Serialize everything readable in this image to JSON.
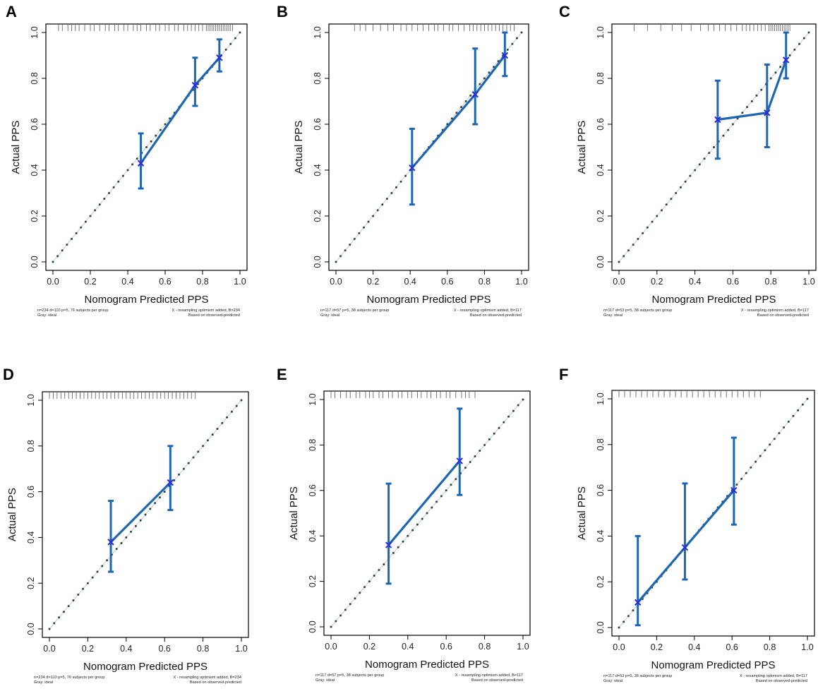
{
  "figure": {
    "description_panels": [
      "A",
      "B",
      "C",
      "D",
      "E",
      "F"
    ]
  },
  "chart_data": [
    {
      "panel": "A",
      "type": "line",
      "xlabel": "Nomogram Predicted PPS",
      "ylabel": "Actual PPS",
      "xlim": [
        0.0,
        1.0
      ],
      "ylim": [
        0.0,
        1.0
      ],
      "xticks": [
        "0.0",
        "0.2",
        "0.4",
        "0.6",
        "0.8",
        "1.0"
      ],
      "yticks": [
        "0.0",
        "0.2",
        "0.4",
        "0.6",
        "0.8",
        "1.0"
      ],
      "ideal_line": {
        "name": "ideal",
        "x": [
          0,
          1
        ],
        "y": [
          0,
          1
        ]
      },
      "groups": [
        {
          "x": 0.47,
          "y": 0.43,
          "lower": 0.32,
          "upper": 0.56
        },
        {
          "x": 0.76,
          "y": 0.77,
          "lower": 0.68,
          "upper": 0.89
        },
        {
          "x": 0.89,
          "y": 0.89,
          "lower": 0.83,
          "upper": 0.97
        }
      ],
      "rug": [
        0.03,
        0.05,
        0.08,
        0.1,
        0.12,
        0.14,
        0.17,
        0.2,
        0.22,
        0.25,
        0.28,
        0.3,
        0.33,
        0.35,
        0.38,
        0.4,
        0.43,
        0.45,
        0.47,
        0.5,
        0.52,
        0.55,
        0.57,
        0.6,
        0.62,
        0.65,
        0.67,
        0.7,
        0.72,
        0.74,
        0.76,
        0.78,
        0.8,
        0.82,
        0.83,
        0.84,
        0.85,
        0.86,
        0.87,
        0.88,
        0.89,
        0.9,
        0.91,
        0.92,
        0.93,
        0.94,
        0.95,
        0.96
      ],
      "footnote_left_1": "n=234 d=110 p=5, 76 subjects per group",
      "footnote_left_2": "Gray: ideal",
      "footnote_right_1": "X - resampling optimism added, B=234",
      "footnote_right_2": "Based on observed-predicted"
    },
    {
      "panel": "B",
      "type": "line",
      "xlabel": "Nomogram Predicted PPS",
      "ylabel": "Actual PPS",
      "xlim": [
        0.0,
        1.0
      ],
      "ylim": [
        0.0,
        1.0
      ],
      "xticks": [
        "0.0",
        "0.2",
        "0.4",
        "0.6",
        "0.8",
        "1.0"
      ],
      "yticks": [
        "0.0",
        "0.2",
        "0.4",
        "0.6",
        "0.8",
        "1.0"
      ],
      "ideal_line": {
        "name": "ideal",
        "x": [
          0,
          1
        ],
        "y": [
          0,
          1
        ]
      },
      "groups": [
        {
          "x": 0.41,
          "y": 0.41,
          "lower": 0.25,
          "upper": 0.58
        },
        {
          "x": 0.75,
          "y": 0.73,
          "lower": 0.6,
          "upper": 0.93
        },
        {
          "x": 0.91,
          "y": 0.9,
          "lower": 0.81,
          "upper": 1.0
        }
      ],
      "rug": [
        0.1,
        0.13,
        0.16,
        0.2,
        0.24,
        0.28,
        0.31,
        0.35,
        0.38,
        0.41,
        0.44,
        0.47,
        0.5,
        0.53,
        0.55,
        0.58,
        0.61,
        0.63,
        0.66,
        0.69,
        0.72,
        0.74,
        0.76,
        0.78,
        0.8,
        0.82,
        0.84,
        0.86,
        0.88,
        0.9,
        0.92,
        0.94,
        0.96
      ],
      "footnote_left_1": "n=117 d=57 p=5, 38 subjects per group",
      "footnote_left_2": "Gray: ideal",
      "footnote_right_1": "X - resampling optimism added, B=117",
      "footnote_right_2": "Based on observed-predicted"
    },
    {
      "panel": "C",
      "type": "line",
      "xlabel": "Nomogram Predicted PPS",
      "ylabel": "Actual PPS",
      "xlim": [
        0.0,
        1.0
      ],
      "ylim": [
        0.0,
        1.0
      ],
      "xticks": [
        "0.0",
        "0.2",
        "0.4",
        "0.6",
        "0.8",
        "1.0"
      ],
      "yticks": [
        "0.0",
        "0.2",
        "0.4",
        "0.6",
        "0.8",
        "1.0"
      ],
      "ideal_line": {
        "name": "ideal",
        "x": [
          0,
          1
        ],
        "y": [
          0,
          1
        ]
      },
      "groups": [
        {
          "x": 0.52,
          "y": 0.62,
          "lower": 0.45,
          "upper": 0.79
        },
        {
          "x": 0.78,
          "y": 0.65,
          "lower": 0.5,
          "upper": 0.86
        },
        {
          "x": 0.88,
          "y": 0.88,
          "lower": 0.8,
          "upper": 1.0
        }
      ],
      "rug": [
        0.08,
        0.15,
        0.22,
        0.28,
        0.33,
        0.38,
        0.43,
        0.47,
        0.5,
        0.53,
        0.56,
        0.59,
        0.62,
        0.65,
        0.67,
        0.69,
        0.71,
        0.73,
        0.75,
        0.77,
        0.79,
        0.8,
        0.81,
        0.82,
        0.83,
        0.84,
        0.85,
        0.86,
        0.87,
        0.88,
        0.89,
        0.9
      ],
      "footnote_left_1": "n=117 d=53 p=5, 38 subjects per group",
      "footnote_left_2": "Gray: ideal",
      "footnote_right_1": "X - resampling optimism added, B=117",
      "footnote_right_2": "Based on observed-predicted"
    },
    {
      "panel": "D",
      "type": "line",
      "xlabel": "Nomogram Predicted PPS",
      "ylabel": "Actual PPS",
      "xlim": [
        0.0,
        1.0
      ],
      "ylim": [
        0.0,
        1.0
      ],
      "xticks": [
        "0.0",
        "0.2",
        "0.4",
        "0.6",
        "0.8",
        "1.0"
      ],
      "yticks": [
        "0.0",
        "0.2",
        "0.4",
        "0.6",
        "0.8",
        "1.0"
      ],
      "ideal_line": {
        "name": "ideal",
        "x": [
          0,
          1
        ],
        "y": [
          0,
          1
        ]
      },
      "groups": [
        {
          "x": 0.32,
          "y": 0.38,
          "lower": 0.25,
          "upper": 0.56
        },
        {
          "x": 0.63,
          "y": 0.64,
          "lower": 0.52,
          "upper": 0.8
        }
      ],
      "rug": [
        0.0,
        0.02,
        0.04,
        0.06,
        0.08,
        0.1,
        0.12,
        0.14,
        0.16,
        0.18,
        0.2,
        0.22,
        0.24,
        0.26,
        0.28,
        0.3,
        0.32,
        0.34,
        0.36,
        0.38,
        0.4,
        0.42,
        0.44,
        0.46,
        0.48,
        0.5,
        0.52,
        0.54,
        0.56,
        0.58,
        0.6,
        0.62,
        0.64,
        0.66,
        0.68,
        0.7,
        0.72,
        0.74,
        0.76
      ],
      "footnote_left_1": "n=234 d=110 p=5, 76 subjects per group",
      "footnote_left_2": "Gray: ideal",
      "footnote_right_1": "X - resampling optimism added, B=234",
      "footnote_right_2": "Based on observed-predicted"
    },
    {
      "panel": "E",
      "type": "line",
      "xlabel": "Nomogram Predicted PPS",
      "ylabel": "Actual PPS",
      "xlim": [
        0.0,
        1.0
      ],
      "ylim": [
        0.0,
        1.0
      ],
      "xticks": [
        "0.0",
        "0.2",
        "0.4",
        "0.6",
        "0.8",
        "1.0"
      ],
      "yticks": [
        "0.0",
        "0.2",
        "0.4",
        "0.6",
        "0.8",
        "1.0"
      ],
      "ideal_line": {
        "name": "ideal",
        "x": [
          0,
          1
        ],
        "y": [
          0,
          1
        ]
      },
      "groups": [
        {
          "x": 0.3,
          "y": 0.36,
          "lower": 0.19,
          "upper": 0.63
        },
        {
          "x": 0.67,
          "y": 0.73,
          "lower": 0.58,
          "upper": 0.96
        }
      ],
      "rug": [
        0.0,
        0.02,
        0.05,
        0.08,
        0.1,
        0.13,
        0.15,
        0.18,
        0.2,
        0.22,
        0.25,
        0.27,
        0.3,
        0.32,
        0.35,
        0.37,
        0.4,
        0.42,
        0.45,
        0.47,
        0.5,
        0.52,
        0.55,
        0.57,
        0.6,
        0.62,
        0.65,
        0.68,
        0.7,
        0.72,
        0.75
      ],
      "footnote_left_1": "n=117 d=57 p=5, 38 subjects per group",
      "footnote_left_2": "Gray: ideal",
      "footnote_right_1": "X - resampling optimism added, B=117",
      "footnote_right_2": "Based on observed-predicted"
    },
    {
      "panel": "F",
      "type": "line",
      "xlabel": "Nomogram Predicted PPS",
      "ylabel": "Actual PPS",
      "xlim": [
        0.0,
        1.0
      ],
      "ylim": [
        0.0,
        1.0
      ],
      "xticks": [
        "0.0",
        "0.2",
        "0.4",
        "0.6",
        "0.8",
        "1.0"
      ],
      "yticks": [
        "0.0",
        "0.2",
        "0.4",
        "0.6",
        "0.8",
        "1.0"
      ],
      "ideal_line": {
        "name": "ideal",
        "x": [
          0,
          1
        ],
        "y": [
          0,
          1
        ]
      },
      "groups": [
        {
          "x": 0.1,
          "y": 0.11,
          "lower": 0.01,
          "upper": 0.4
        },
        {
          "x": 0.35,
          "y": 0.35,
          "lower": 0.21,
          "upper": 0.63
        },
        {
          "x": 0.61,
          "y": 0.6,
          "lower": 0.45,
          "upper": 0.83
        }
      ],
      "rug": [
        0.0,
        0.03,
        0.06,
        0.09,
        0.12,
        0.15,
        0.18,
        0.21,
        0.24,
        0.27,
        0.3,
        0.33,
        0.36,
        0.39,
        0.42,
        0.45,
        0.48,
        0.51,
        0.54,
        0.57,
        0.6,
        0.63,
        0.66,
        0.69,
        0.72,
        0.75
      ],
      "footnote_left_1": "n=117 d=53 p=5, 38 subjects per group",
      "footnote_left_2": "Gray: ideal",
      "footnote_right_1": "X - resampling optimism added, B=117",
      "footnote_right_2": "Based on observed-predicted"
    }
  ],
  "colors": {
    "calibration_line": "#1f66b0",
    "cross_marker": "#2b2bd9",
    "ideal_dots": "#1f4a3c",
    "ideal_line": "#c8c8c8",
    "axis": "#000000",
    "rug": "#555555"
  }
}
